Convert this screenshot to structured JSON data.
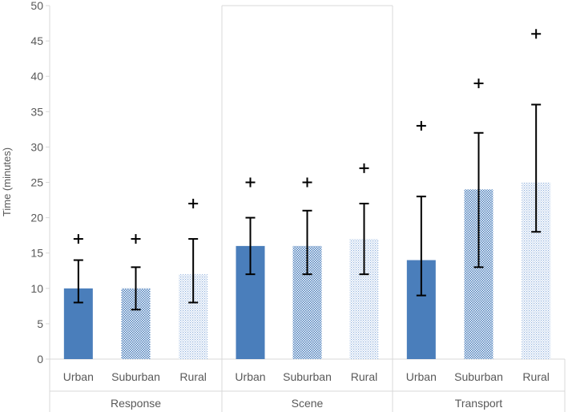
{
  "chart_data": {
    "type": "bar",
    "title": "",
    "xlabel": "",
    "ylabel": "Time (minutes)",
    "ylim": [
      0,
      50
    ],
    "yticks": [
      0,
      5,
      10,
      15,
      20,
      25,
      30,
      35,
      40,
      45,
      50
    ],
    "groups": [
      {
        "name": "Response",
        "bars": [
          {
            "category": "Urban",
            "value": 10,
            "err_low": 8,
            "err_high": 14,
            "plus": 17,
            "fill": "solid"
          },
          {
            "category": "Suburban",
            "value": 10,
            "err_low": 7,
            "err_high": 13,
            "plus": 17,
            "fill": "checker"
          },
          {
            "category": "Rural",
            "value": 12,
            "err_low": 8,
            "err_high": 17,
            "plus": 22,
            "fill": "dots"
          }
        ]
      },
      {
        "name": "Scene",
        "bars": [
          {
            "category": "Urban",
            "value": 16,
            "err_low": 12,
            "err_high": 20,
            "plus": 25,
            "fill": "solid"
          },
          {
            "category": "Suburban",
            "value": 16,
            "err_low": 12,
            "err_high": 21,
            "plus": 25,
            "fill": "checker"
          },
          {
            "category": "Rural",
            "value": 17,
            "err_low": 12,
            "err_high": 22,
            "plus": 27,
            "fill": "dots"
          }
        ]
      },
      {
        "name": "Transport",
        "bars": [
          {
            "category": "Urban",
            "value": 14,
            "err_low": 9,
            "err_high": 23,
            "plus": 33,
            "fill": "solid"
          },
          {
            "category": "Suburban",
            "value": 24,
            "err_low": 13,
            "err_high": 32,
            "plus": 39,
            "fill": "checker"
          },
          {
            "category": "Rural",
            "value": 25,
            "err_low": 18,
            "err_high": 36,
            "plus": 46,
            "fill": "dots"
          }
        ]
      }
    ],
    "grid": false,
    "colors": {
      "bar": "#4a7ebb",
      "error": "#000000",
      "axis": "#d9d9d9",
      "text": "#595959"
    }
  }
}
